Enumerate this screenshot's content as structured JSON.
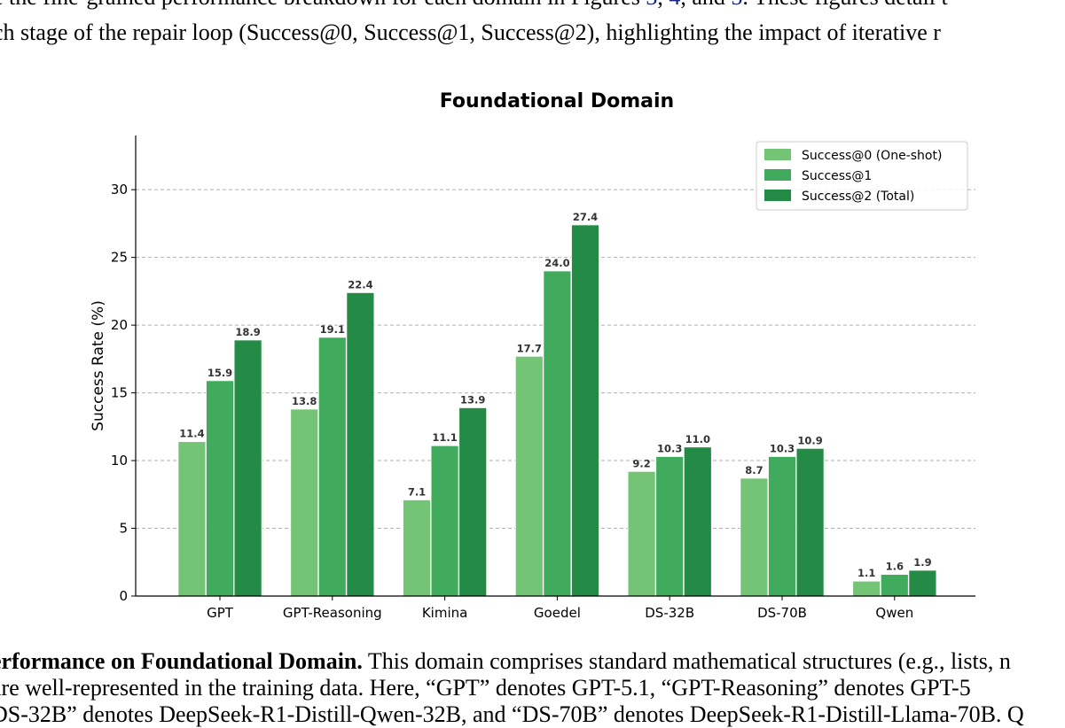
{
  "document": {
    "top_line_1": {
      "pre": "e the fine-grained performance breakdown for each domain in Figures ",
      "ref1": "3",
      "sep1": ", ",
      "ref2": "4",
      "sep2": ", and ",
      "ref3": "5",
      "post": ". These figures detail t"
    },
    "top_line_2": "ch stage of the repair loop (Success@0, Success@1, Success@2), highlighting the impact of iterative r",
    "caption_bold": "erformance on Foundational Domain.",
    "caption_rest": " This domain comprises standard mathematical structures (e.g., lists, n",
    "caption_line_2": " are well-represented in the training data.  Here, “GPT” denotes GPT-5.1, “GPT-Reasoning” denotes GPT-5",
    "caption_line_3": "DS-32B” denotes DeepSeek-R1-Distill-Qwen-32B, and “DS-70B” denotes DeepSeek-R1-Distill-Llama-70B. Q"
  },
  "chart_data": {
    "type": "bar",
    "title": "Foundational Domain",
    "xlabel": "",
    "ylabel": "Success Rate (%)",
    "ylim": [
      0,
      34
    ],
    "yticks": [
      "0",
      "5",
      "10",
      "15",
      "20",
      "25",
      "30"
    ],
    "grid": "horizontal dashed",
    "legend_position": "top-right",
    "categories": [
      "GPT",
      "GPT-Reasoning",
      "Kimina",
      "Goedel",
      "DS-32B",
      "DS-70B",
      "Qwen"
    ],
    "series": [
      {
        "name": "Success@0 (One-shot)",
        "color": "#74c476",
        "values": [
          11.4,
          13.8,
          7.1,
          17.7,
          9.2,
          8.7,
          1.1
        ]
      },
      {
        "name": "Success@1",
        "color": "#41ab5d",
        "values": [
          15.9,
          19.1,
          11.1,
          24.0,
          10.3,
          10.3,
          1.6
        ]
      },
      {
        "name": "Success@2 (Total)",
        "color": "#238b45",
        "values": [
          18.9,
          22.4,
          13.9,
          27.4,
          11.0,
          10.9,
          1.9
        ]
      }
    ]
  }
}
